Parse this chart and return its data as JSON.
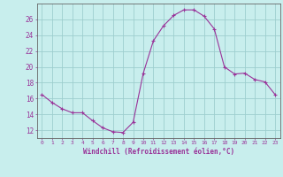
{
  "x": [
    0,
    1,
    2,
    3,
    4,
    5,
    6,
    7,
    8,
    9,
    10,
    11,
    12,
    13,
    14,
    15,
    16,
    17,
    18,
    19,
    20,
    21,
    22,
    23
  ],
  "y": [
    16.5,
    15.5,
    14.7,
    14.2,
    14.2,
    13.2,
    12.3,
    11.8,
    11.7,
    13.0,
    19.2,
    23.3,
    25.2,
    26.5,
    27.2,
    27.2,
    26.4,
    24.8,
    20.0,
    19.1,
    19.2,
    18.4,
    18.1,
    16.5
  ],
  "line_color": "#993399",
  "marker": "+",
  "marker_color": "#993399",
  "bg_color": "#c8eeed",
  "grid_color": "#9ecece",
  "xlabel": "Windchill (Refroidissement éolien,°C)",
  "xlabel_color": "#993399",
  "tick_color": "#993399",
  "axis_color": "#666666",
  "ylim": [
    11,
    28
  ],
  "xlim": [
    -0.5,
    23.5
  ],
  "yticks": [
    12,
    14,
    16,
    18,
    20,
    22,
    24,
    26
  ],
  "xticks": [
    0,
    1,
    2,
    3,
    4,
    5,
    6,
    7,
    8,
    9,
    10,
    11,
    12,
    13,
    14,
    15,
    16,
    17,
    18,
    19,
    20,
    21,
    22,
    23
  ]
}
